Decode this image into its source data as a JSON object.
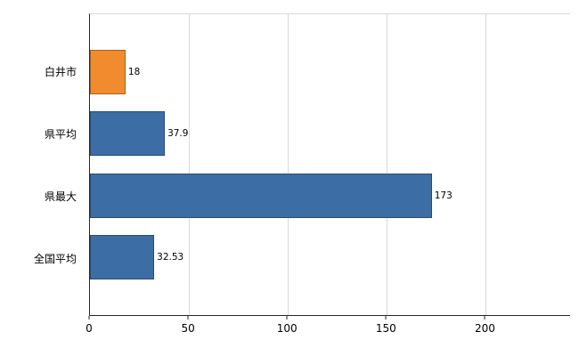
{
  "chart_data": {
    "type": "bar",
    "orientation": "horizontal",
    "title": "",
    "categories": [
      "白井市",
      "県平均",
      "県最大",
      "全国平均"
    ],
    "values": [
      18,
      37.9,
      173,
      32.53
    ],
    "value_labels": [
      "18",
      "37.9",
      "173",
      "32.53"
    ],
    "bar_colors": [
      "#f08c2e",
      "#3c6da4",
      "#3c6da4",
      "#3c6da4"
    ],
    "x_ticks": [
      0,
      50,
      100,
      150,
      200
    ],
    "x_tick_labels": [
      "0",
      "50",
      "100",
      "150",
      "200"
    ],
    "xlim": [
      0,
      243
    ],
    "grid": true,
    "legend": "none",
    "ylabel": "",
    "xlabel": ""
  },
  "colors": {
    "accent_orange": "#f08c2e",
    "accent_blue": "#3c6da4",
    "grid": "#d9d9d9",
    "axis": "#262626",
    "background": "#ffffff"
  }
}
